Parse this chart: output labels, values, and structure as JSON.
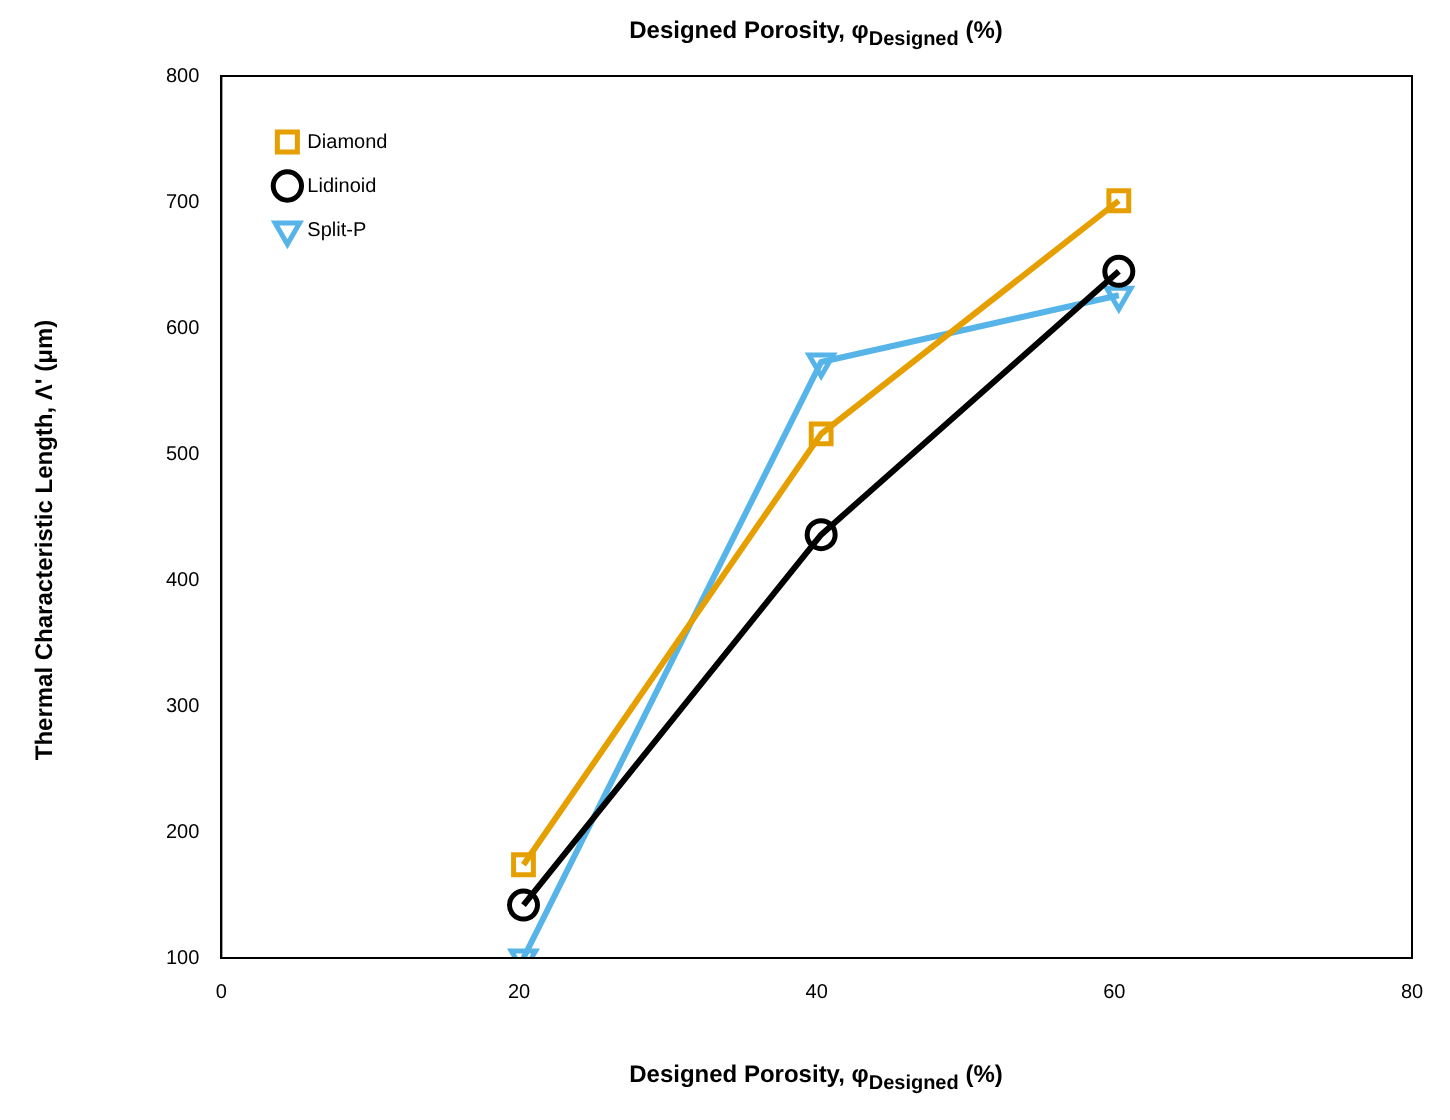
{
  "chart_data": {
    "type": "line",
    "title": "Designed Porosity, φ$_{Designed}$ (%)",
    "xlabel": "Designed Porosity, φ$_{Designed}$ (%)",
    "ylabel": "Thermal Characteristic Length, Λ' (μm)",
    "x": [
      20.3,
      40.3,
      60.3
    ],
    "series": [
      {
        "name": "Diamond",
        "color": "#e69f00",
        "marker": "square",
        "values": [
          174,
          516,
          701
        ]
      },
      {
        "name": "Lidinoid",
        "color": "#000000",
        "marker": "circle",
        "values": [
          142,
          436,
          645
        ]
      },
      {
        "name": "Split-P",
        "color": "#56b4e9",
        "marker": "triangle",
        "values": [
          100,
          573,
          626
        ]
      }
    ],
    "xlim": [
      0,
      80
    ],
    "xticks": [
      0,
      20,
      40,
      60,
      80
    ],
    "ylim": [
      100,
      800
    ],
    "yticks": [
      100,
      200,
      300,
      400,
      500,
      600,
      700,
      800
    ],
    "grid": false,
    "legend": "top left",
    "line_style": "solid"
  }
}
